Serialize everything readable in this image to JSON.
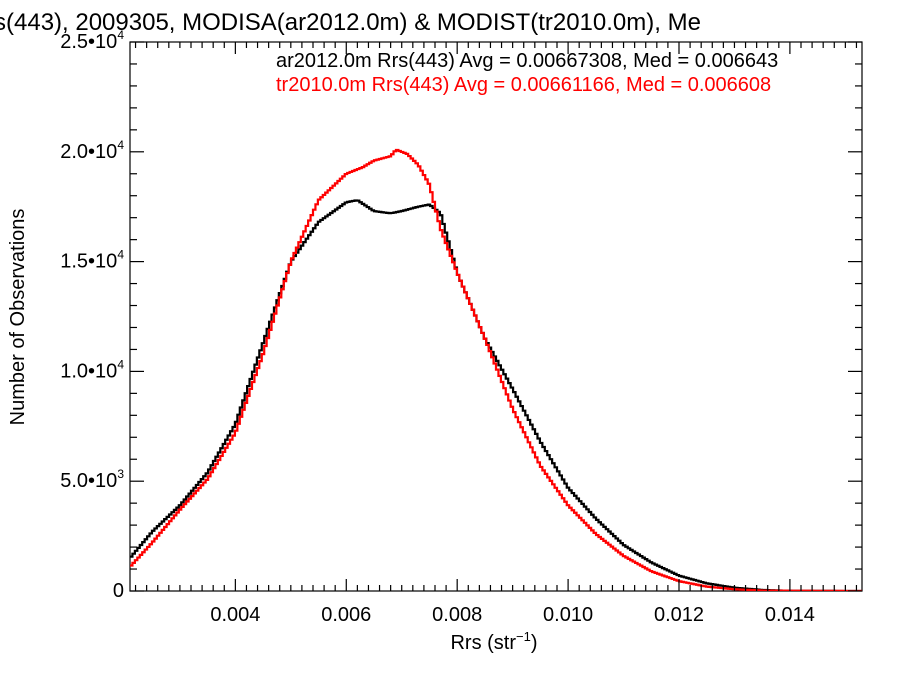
{
  "chart_data": {
    "type": "line",
    "step": true,
    "title": "s(443), 2009305, MODISA(ar2012.0m) & MODIST(tr2010.0m), Me",
    "xlabel": "Rrs (str",
    "xlabel_sup": "−1",
    "xlabel_tail": ")",
    "ylabel": "Number of Observations",
    "xlim": [
      0.0021,
      0.0153
    ],
    "ylim": [
      0,
      25000
    ],
    "x_ticks": [
      {
        "value": 0.004,
        "label": "0.004"
      },
      {
        "value": 0.006,
        "label": "0.006"
      },
      {
        "value": 0.008,
        "label": "0.008"
      },
      {
        "value": 0.01,
        "label": "0.010"
      },
      {
        "value": 0.012,
        "label": "0.012"
      },
      {
        "value": 0.014,
        "label": "0.014"
      }
    ],
    "y_ticks": [
      {
        "value": 0,
        "mantissa": "0",
        "exp": ""
      },
      {
        "value": 5000,
        "mantissa": "5.0•10",
        "exp": "3"
      },
      {
        "value": 10000,
        "mantissa": "1.0•10",
        "exp": "4"
      },
      {
        "value": 15000,
        "mantissa": "1.5•10",
        "exp": "4"
      },
      {
        "value": 20000,
        "mantissa": "2.0•10",
        "exp": "4"
      },
      {
        "value": 25000,
        "mantissa": "2.5•10",
        "exp": "4"
      }
    ],
    "grid": false,
    "annotations": [
      {
        "text": "ar2012.0m Rrs(443) Avg = 0.00667308, Med = 0.006643",
        "color": "#000000"
      },
      {
        "text": "tr2010.0m Rrs(443) Avg = 0.00661166, Med = 0.006608",
        "color": "#ff0000"
      }
    ],
    "series": [
      {
        "color": "#000000",
        "x": [
          0.0021,
          0.0025,
          0.003,
          0.0035,
          0.004,
          0.0045,
          0.005,
          0.0055,
          0.006,
          0.0062,
          0.0065,
          0.0068,
          0.007,
          0.0073,
          0.0075,
          0.0077,
          0.008,
          0.0085,
          0.009,
          0.0095,
          0.01,
          0.0105,
          0.011,
          0.0115,
          0.012,
          0.0125,
          0.013,
          0.0135,
          0.014,
          0.0153
        ],
        "y": [
          1500,
          2700,
          3900,
          5400,
          7600,
          11300,
          15000,
          16800,
          17700,
          17800,
          17300,
          17200,
          17300,
          17500,
          17600,
          17200,
          14500,
          11500,
          9200,
          6800,
          4700,
          3300,
          2100,
          1300,
          700,
          350,
          150,
          50,
          10,
          0
        ]
      },
      {
        "color": "#ff0000",
        "x": [
          0.0021,
          0.0025,
          0.003,
          0.0035,
          0.004,
          0.0045,
          0.005,
          0.0055,
          0.006,
          0.0063,
          0.0065,
          0.0068,
          0.0069,
          0.0071,
          0.0073,
          0.0075,
          0.0077,
          0.008,
          0.0085,
          0.009,
          0.0095,
          0.01,
          0.0105,
          0.011,
          0.0115,
          0.012,
          0.0125,
          0.013,
          0.0135,
          0.0153
        ],
        "y": [
          1100,
          2200,
          3700,
          5100,
          7200,
          10800,
          15000,
          17800,
          19000,
          19300,
          19600,
          19800,
          20100,
          19900,
          19400,
          18500,
          16500,
          14500,
          11500,
          8300,
          5700,
          3900,
          2600,
          1600,
          900,
          450,
          200,
          80,
          20,
          0
        ]
      }
    ]
  }
}
